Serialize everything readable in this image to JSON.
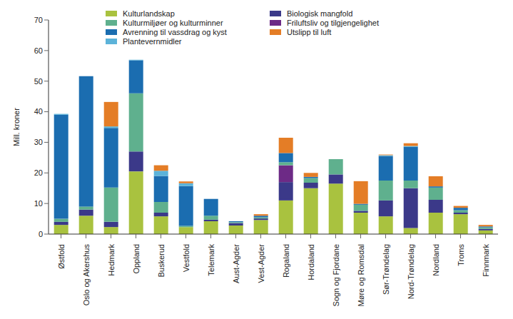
{
  "chart_data": {
    "type": "bar",
    "stacked": true,
    "grid": false,
    "y_label": "Mill. kroner",
    "ylim": [
      0,
      70
    ],
    "yticks": [
      0,
      10,
      20,
      30,
      40,
      50,
      60,
      70
    ],
    "categories": [
      "Østfold",
      "Oslo og Akershus",
      "Hedmark",
      "Oppland",
      "Buskerud",
      "Vestfold",
      "Telemark",
      "Aust-Agder",
      "Vest-Agder",
      "Rogaland",
      "Hordaland",
      "Sogn og Fjordane",
      "Møre og Romsdal",
      "Sør-Trøndelag",
      "Nord-Trøndelag",
      "Nordland",
      "Troms",
      "Finnmark"
    ],
    "series": [
      {
        "name": "Kulturlandskap",
        "color": "#a9c23f",
        "values": [
          3,
          6,
          2.3,
          20.5,
          5.8,
          2.3,
          4.2,
          2.8,
          4.6,
          11,
          15,
          16.5,
          7,
          5.8,
          2,
          7,
          6.5,
          1.2
        ]
      },
      {
        "name": "Biologisk mangfold",
        "color": "#3b3989",
        "values": [
          1,
          2,
          1.7,
          6.5,
          1.2,
          0,
          0.5,
          0.8,
          0.5,
          6,
          1.8,
          3,
          0.6,
          5.2,
          13,
          4.2,
          0.5,
          0.5
        ]
      },
      {
        "name": "Friluftsliv og tilgjengelighet",
        "color": "#6d2a86",
        "values": [
          0,
          0,
          0,
          0,
          0,
          0,
          0,
          0,
          0,
          5.5,
          0,
          0,
          0,
          0,
          0,
          0,
          0,
          0
        ]
      },
      {
        "name": "Kulturmiljøer og kulturminner",
        "color": "#5fb08e",
        "values": [
          1,
          1,
          11.2,
          19,
          3.5,
          0.4,
          1.3,
          0.3,
          0.4,
          1,
          1.5,
          5,
          2,
          6.5,
          2.5,
          4,
          0.8,
          0.5
        ]
      },
      {
        "name": "Avrenning til vassdrag og kyst",
        "color": "#1b6db0",
        "values": [
          34,
          42.6,
          19.5,
          10.8,
          8.5,
          13,
          5.5,
          0.3,
          0.5,
          3,
          0.4,
          0,
          0.3,
          8,
          11,
          0.4,
          0.8,
          0.3
        ]
      },
      {
        "name": "Plantevernmidler",
        "color": "#5cb3d9",
        "values": [
          0.3,
          0,
          0.5,
          0.2,
          1.7,
          0.9,
          0,
          0,
          0,
          0,
          0,
          0,
          0,
          0.3,
          0.3,
          0,
          0,
          0
        ]
      },
      {
        "name": "Utslipp til luft",
        "color": "#e47d26",
        "values": [
          0,
          0,
          8,
          0,
          1.8,
          0.6,
          0,
          0,
          0.5,
          5,
          1.3,
          0,
          7.4,
          0.2,
          0.9,
          3.3,
          0.6,
          0.5
        ]
      }
    ]
  }
}
